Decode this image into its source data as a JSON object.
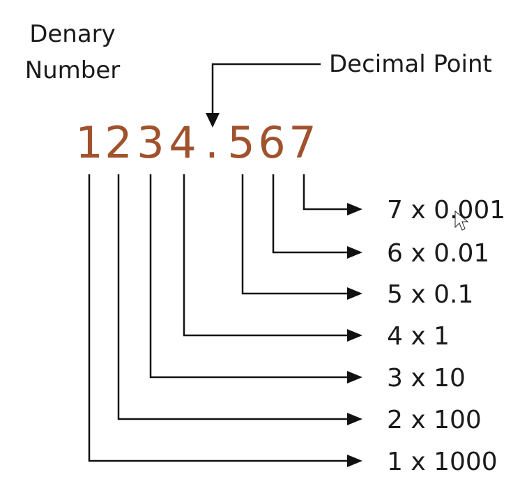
{
  "diagram": {
    "denary_label_line1": "Denary",
    "denary_label_line2": "Number",
    "decimal_point_label": "Decimal Point",
    "number_glyphs": [
      "1",
      "2",
      "3",
      "4",
      ".",
      "5",
      "6",
      "7"
    ],
    "digit_color": "#a0522d",
    "line_color": "#111111",
    "place_values": [
      {
        "digit": "1",
        "label": "1 x 1000"
      },
      {
        "digit": "2",
        "label": "2 x 100"
      },
      {
        "digit": "3",
        "label": "3 x 10"
      },
      {
        "digit": "4",
        "label": "4 x 1"
      },
      {
        "digit": "5",
        "label": "5 x 0.1"
      },
      {
        "digit": "6",
        "label": "6 x 0.01"
      },
      {
        "digit": "7",
        "label": "7 x 0.001"
      }
    ],
    "cursor_icon": "mouse-pointer-icon"
  }
}
